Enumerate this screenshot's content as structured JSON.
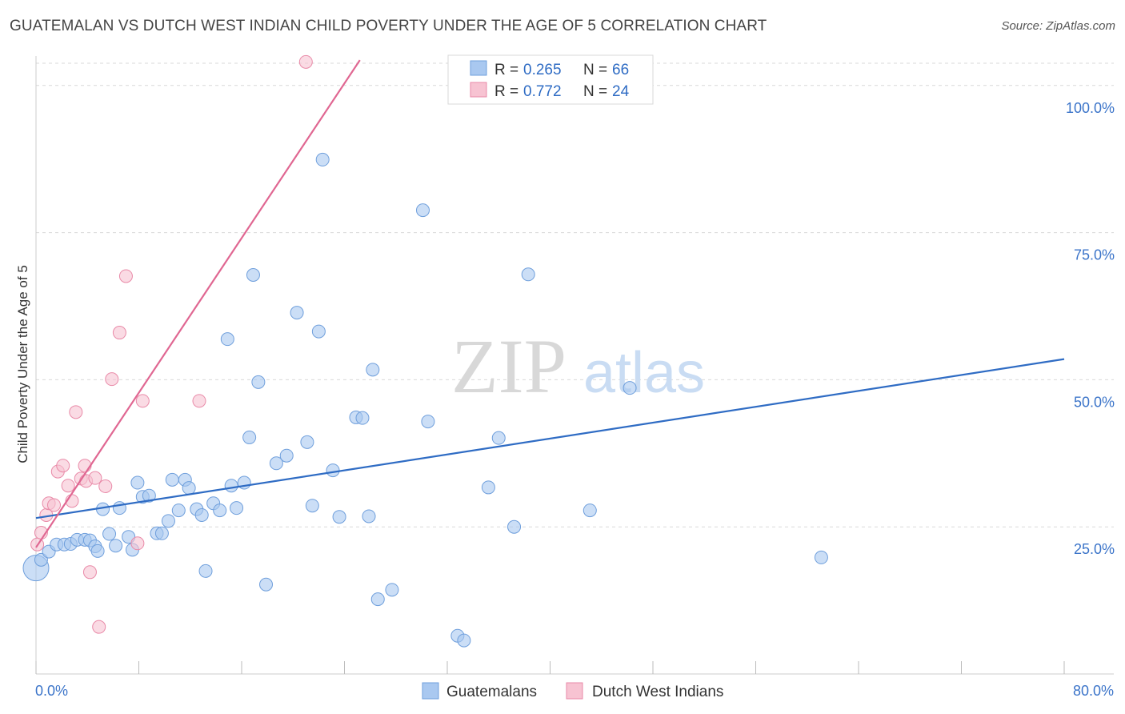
{
  "title": "GUATEMALAN VS DUTCH WEST INDIAN CHILD POVERTY UNDER THE AGE OF 5 CORRELATION CHART",
  "source": "Source: ZipAtlas.com",
  "watermark": {
    "zip": "ZIP",
    "atlas": "atlas"
  },
  "colors": {
    "blue_fill": "#a9c8f0",
    "blue_stroke": "#6f9fdc",
    "blue_line": "#2f6cc4",
    "pink_fill": "#f7c3d2",
    "pink_stroke": "#e98aa8",
    "pink_line": "#e06792",
    "axis_text": "#3b74c9",
    "grid": "#d9d9d9"
  },
  "stats": {
    "r_label": "R =",
    "n_label": "N =",
    "rows": [
      {
        "r": "0.265",
        "n": "66",
        "series": "blue"
      },
      {
        "r": "0.772",
        "n": "24",
        "series": "pink"
      }
    ]
  },
  "legend": {
    "items": [
      "Guatemalans",
      "Dutch West Indians"
    ]
  },
  "chart_data": {
    "type": "scatter",
    "ylabel": "Child Poverty Under the Age of 5",
    "xlim": [
      0,
      80
    ],
    "ylim": [
      0,
      105
    ],
    "x_tick_labels": [
      "0.0%",
      "80.0%"
    ],
    "y_ticks": [
      {
        "value": 100,
        "label": "100.0%"
      },
      {
        "value": 75,
        "label": "75.0%"
      },
      {
        "value": 50,
        "label": "50.0%"
      },
      {
        "value": 25,
        "label": "25.0%"
      }
    ],
    "grid": true,
    "legend_position": "bottom-center",
    "series": [
      {
        "name": "Guatemalans",
        "color": "#a9c8f0",
        "trend": {
          "x": [
            0,
            80
          ],
          "y": [
            26.5,
            53.5
          ]
        },
        "points": [
          [
            0.0,
            18.0
          ],
          [
            0.4,
            19.4
          ],
          [
            1.0,
            20.8
          ],
          [
            1.6,
            22.0
          ],
          [
            2.2,
            22.0
          ],
          [
            2.7,
            22.1
          ],
          [
            3.2,
            22.8
          ],
          [
            3.8,
            22.8
          ],
          [
            4.2,
            22.7
          ],
          [
            4.6,
            21.7
          ],
          [
            4.8,
            20.9
          ],
          [
            5.2,
            28.0
          ],
          [
            6.5,
            28.2
          ],
          [
            5.7,
            23.8
          ],
          [
            6.2,
            21.8
          ],
          [
            7.2,
            23.3
          ],
          [
            7.5,
            21.1
          ],
          [
            7.9,
            32.5
          ],
          [
            8.3,
            30.1
          ],
          [
            8.8,
            30.3
          ],
          [
            9.4,
            23.9
          ],
          [
            9.8,
            23.9
          ],
          [
            10.3,
            26.0
          ],
          [
            10.6,
            33.0
          ],
          [
            11.1,
            27.8
          ],
          [
            11.6,
            33.0
          ],
          [
            11.9,
            31.6
          ],
          [
            12.5,
            28.0
          ],
          [
            12.9,
            27.0
          ],
          [
            13.2,
            17.5
          ],
          [
            13.8,
            29.0
          ],
          [
            14.3,
            27.8
          ],
          [
            14.9,
            56.9
          ],
          [
            15.2,
            32.0
          ],
          [
            15.6,
            28.2
          ],
          [
            16.2,
            32.5
          ],
          [
            16.6,
            40.2
          ],
          [
            16.9,
            67.8
          ],
          [
            17.3,
            49.6
          ],
          [
            17.9,
            15.2
          ],
          [
            18.7,
            35.8
          ],
          [
            19.5,
            37.1
          ],
          [
            20.3,
            61.4
          ],
          [
            21.1,
            39.4
          ],
          [
            21.5,
            28.6
          ],
          [
            22.0,
            58.2
          ],
          [
            22.3,
            87.4
          ],
          [
            23.1,
            34.6
          ],
          [
            23.6,
            26.7
          ],
          [
            24.9,
            43.6
          ],
          [
            25.4,
            43.5
          ],
          [
            25.9,
            26.8
          ],
          [
            26.2,
            51.7
          ],
          [
            26.6,
            12.7
          ],
          [
            27.7,
            14.3
          ],
          [
            30.1,
            78.8
          ],
          [
            30.5,
            42.9
          ],
          [
            32.8,
            6.5
          ],
          [
            33.3,
            5.7
          ],
          [
            35.2,
            31.7
          ],
          [
            36.0,
            40.1
          ],
          [
            37.2,
            25.0
          ],
          [
            38.3,
            67.9
          ],
          [
            43.1,
            27.8
          ],
          [
            46.2,
            48.6
          ],
          [
            61.1,
            19.8
          ]
        ]
      },
      {
        "name": "Dutch West Indians",
        "color": "#f7c3d2",
        "trend": {
          "x": [
            0,
            25.2
          ],
          "y": [
            21.5,
            104.3
          ]
        },
        "points": [
          [
            0.1,
            22.0
          ],
          [
            0.4,
            24.0
          ],
          [
            0.8,
            27.0
          ],
          [
            1.0,
            29.0
          ],
          [
            1.4,
            28.7
          ],
          [
            1.7,
            34.4
          ],
          [
            2.1,
            35.4
          ],
          [
            2.5,
            32.0
          ],
          [
            2.8,
            29.4
          ],
          [
            3.1,
            44.5
          ],
          [
            3.5,
            33.2
          ],
          [
            3.9,
            32.8
          ],
          [
            3.8,
            35.4
          ],
          [
            4.2,
            17.3
          ],
          [
            4.6,
            33.3
          ],
          [
            4.9,
            8.0
          ],
          [
            5.4,
            31.9
          ],
          [
            5.9,
            50.1
          ],
          [
            6.5,
            58.0
          ],
          [
            7.0,
            67.6
          ],
          [
            7.9,
            22.2
          ],
          [
            8.3,
            46.4
          ],
          [
            12.7,
            46.4
          ],
          [
            21.0,
            104.0
          ]
        ]
      }
    ]
  }
}
